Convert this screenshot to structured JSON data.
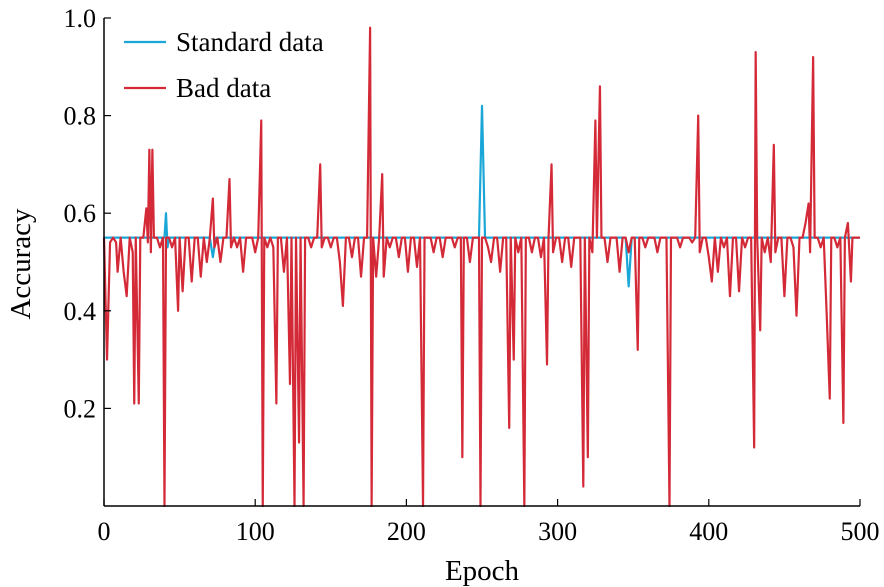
{
  "chart_data": {
    "type": "line",
    "title": "",
    "xlabel": "Epoch",
    "ylabel": "Accuracy",
    "xlim": [
      0,
      500
    ],
    "ylim": [
      0,
      1.0
    ],
    "xticks": [
      "0",
      "100",
      "200",
      "300",
      "400",
      "500"
    ],
    "yticks": [
      "0.2",
      "0.4",
      "0.6",
      "0.8",
      "1.0"
    ],
    "grid": false,
    "legend_position": "top-left",
    "series": [
      {
        "name": "Standard data",
        "color": "#1aa7d8",
        "points": [
          [
            0,
            0.55
          ],
          [
            4,
            0.55
          ],
          [
            40,
            0.55
          ],
          [
            41,
            0.6
          ],
          [
            42,
            0.53
          ],
          [
            43,
            0.55
          ],
          [
            70,
            0.55
          ],
          [
            72,
            0.51
          ],
          [
            74,
            0.55
          ],
          [
            248,
            0.55
          ],
          [
            250,
            0.82
          ],
          [
            252,
            0.55
          ],
          [
            345,
            0.55
          ],
          [
            347,
            0.45
          ],
          [
            349,
            0.55
          ],
          [
            500,
            0.55
          ]
        ]
      },
      {
        "name": "Bad data",
        "color": "#d42a38",
        "points": [
          [
            0,
            0.55
          ],
          [
            2,
            0.3
          ],
          [
            4,
            0.54
          ],
          [
            6,
            0.55
          ],
          [
            8,
            0.54
          ],
          [
            9,
            0.48
          ],
          [
            11,
            0.55
          ],
          [
            13,
            0.48
          ],
          [
            15,
            0.43
          ],
          [
            17,
            0.55
          ],
          [
            19,
            0.52
          ],
          [
            20,
            0.21
          ],
          [
            21,
            0.55
          ],
          [
            23,
            0.21
          ],
          [
            24,
            0.55
          ],
          [
            26,
            0.55
          ],
          [
            28,
            0.61
          ],
          [
            29,
            0.54
          ],
          [
            30,
            0.73
          ],
          [
            31,
            0.52
          ],
          [
            32,
            0.73
          ],
          [
            33,
            0.55
          ],
          [
            35,
            0.55
          ],
          [
            37,
            0.53
          ],
          [
            39,
            0.55
          ],
          [
            40,
            0.0
          ],
          [
            41,
            0.55
          ],
          [
            43,
            0.55
          ],
          [
            45,
            0.53
          ],
          [
            47,
            0.55
          ],
          [
            49,
            0.4
          ],
          [
            50,
            0.55
          ],
          [
            52,
            0.44
          ],
          [
            54,
            0.55
          ],
          [
            56,
            0.55
          ],
          [
            58,
            0.46
          ],
          [
            60,
            0.55
          ],
          [
            62,
            0.55
          ],
          [
            64,
            0.47
          ],
          [
            66,
            0.55
          ],
          [
            68,
            0.5
          ],
          [
            70,
            0.55
          ],
          [
            72,
            0.63
          ],
          [
            73,
            0.53
          ],
          [
            75,
            0.55
          ],
          [
            77,
            0.5
          ],
          [
            79,
            0.55
          ],
          [
            81,
            0.55
          ],
          [
            83,
            0.67
          ],
          [
            84,
            0.53
          ],
          [
            86,
            0.55
          ],
          [
            88,
            0.53
          ],
          [
            90,
            0.55
          ],
          [
            92,
            0.48
          ],
          [
            94,
            0.55
          ],
          [
            96,
            0.55
          ],
          [
            98,
            0.55
          ],
          [
            100,
            0.52
          ],
          [
            102,
            0.55
          ],
          [
            104,
            0.79
          ],
          [
            105,
            0.0
          ],
          [
            106,
            0.55
          ],
          [
            108,
            0.53
          ],
          [
            110,
            0.55
          ],
          [
            112,
            0.53
          ],
          [
            114,
            0.21
          ],
          [
            115,
            0.55
          ],
          [
            117,
            0.55
          ],
          [
            119,
            0.48
          ],
          [
            121,
            0.55
          ],
          [
            123,
            0.25
          ],
          [
            124,
            0.55
          ],
          [
            126,
            0.0
          ],
          [
            127,
            0.55
          ],
          [
            129,
            0.13
          ],
          [
            130,
            0.55
          ],
          [
            132,
            0.0
          ],
          [
            133,
            0.55
          ],
          [
            135,
            0.55
          ],
          [
            137,
            0.53
          ],
          [
            139,
            0.55
          ],
          [
            141,
            0.55
          ],
          [
            143,
            0.7
          ],
          [
            144,
            0.53
          ],
          [
            146,
            0.55
          ],
          [
            148,
            0.55
          ],
          [
            150,
            0.53
          ],
          [
            152,
            0.55
          ],
          [
            154,
            0.55
          ],
          [
            156,
            0.5
          ],
          [
            158,
            0.41
          ],
          [
            160,
            0.55
          ],
          [
            162,
            0.55
          ],
          [
            164,
            0.51
          ],
          [
            166,
            0.55
          ],
          [
            168,
            0.55
          ],
          [
            170,
            0.47
          ],
          [
            172,
            0.55
          ],
          [
            174,
            0.55
          ],
          [
            176,
            0.98
          ],
          [
            177,
            0.0
          ],
          [
            178,
            0.55
          ],
          [
            180,
            0.47
          ],
          [
            182,
            0.55
          ],
          [
            184,
            0.68
          ],
          [
            185,
            0.47
          ],
          [
            187,
            0.55
          ],
          [
            189,
            0.53
          ],
          [
            191,
            0.55
          ],
          [
            193,
            0.55
          ],
          [
            195,
            0.51
          ],
          [
            197,
            0.55
          ],
          [
            199,
            0.55
          ],
          [
            201,
            0.48
          ],
          [
            203,
            0.55
          ],
          [
            205,
            0.55
          ],
          [
            207,
            0.49
          ],
          [
            209,
            0.55
          ],
          [
            211,
            0.0
          ],
          [
            212,
            0.55
          ],
          [
            214,
            0.55
          ],
          [
            216,
            0.55
          ],
          [
            218,
            0.52
          ],
          [
            220,
            0.55
          ],
          [
            222,
            0.55
          ],
          [
            224,
            0.51
          ],
          [
            226,
            0.55
          ],
          [
            228,
            0.55
          ],
          [
            230,
            0.55
          ],
          [
            232,
            0.53
          ],
          [
            234,
            0.55
          ],
          [
            236,
            0.55
          ],
          [
            237,
            0.1
          ],
          [
            238,
            0.55
          ],
          [
            240,
            0.55
          ],
          [
            242,
            0.5
          ],
          [
            244,
            0.55
          ],
          [
            246,
            0.55
          ],
          [
            248,
            0.55
          ],
          [
            249,
            0.0
          ],
          [
            250,
            0.55
          ],
          [
            252,
            0.55
          ],
          [
            254,
            0.53
          ],
          [
            256,
            0.5
          ],
          [
            258,
            0.55
          ],
          [
            260,
            0.55
          ],
          [
            262,
            0.48
          ],
          [
            264,
            0.55
          ],
          [
            266,
            0.55
          ],
          [
            268,
            0.16
          ],
          [
            269,
            0.55
          ],
          [
            271,
            0.3
          ],
          [
            272,
            0.55
          ],
          [
            274,
            0.52
          ],
          [
            276,
            0.55
          ],
          [
            278,
            0.0
          ],
          [
            279,
            0.55
          ],
          [
            281,
            0.55
          ],
          [
            283,
            0.52
          ],
          [
            285,
            0.55
          ],
          [
            287,
            0.55
          ],
          [
            289,
            0.51
          ],
          [
            291,
            0.55
          ],
          [
            293,
            0.29
          ],
          [
            294,
            0.55
          ],
          [
            296,
            0.7
          ],
          [
            297,
            0.52
          ],
          [
            299,
            0.55
          ],
          [
            301,
            0.55
          ],
          [
            303,
            0.5
          ],
          [
            305,
            0.55
          ],
          [
            307,
            0.55
          ],
          [
            309,
            0.49
          ],
          [
            311,
            0.55
          ],
          [
            313,
            0.55
          ],
          [
            315,
            0.55
          ],
          [
            317,
            0.04
          ],
          [
            318,
            0.55
          ],
          [
            320,
            0.1
          ],
          [
            321,
            0.55
          ],
          [
            323,
            0.52
          ],
          [
            325,
            0.79
          ],
          [
            326,
            0.55
          ],
          [
            328,
            0.86
          ],
          [
            329,
            0.55
          ],
          [
            331,
            0.55
          ],
          [
            333,
            0.5
          ],
          [
            335,
            0.55
          ],
          [
            337,
            0.55
          ],
          [
            339,
            0.55
          ],
          [
            341,
            0.48
          ],
          [
            343,
            0.55
          ],
          [
            345,
            0.55
          ],
          [
            347,
            0.52
          ],
          [
            349,
            0.55
          ],
          [
            351,
            0.55
          ],
          [
            353,
            0.32
          ],
          [
            354,
            0.55
          ],
          [
            356,
            0.55
          ],
          [
            358,
            0.53
          ],
          [
            360,
            0.55
          ],
          [
            362,
            0.55
          ],
          [
            364,
            0.55
          ],
          [
            366,
            0.52
          ],
          [
            368,
            0.55
          ],
          [
            370,
            0.55
          ],
          [
            372,
            0.55
          ],
          [
            374,
            0.0
          ],
          [
            375,
            0.55
          ],
          [
            377,
            0.55
          ],
          [
            379,
            0.55
          ],
          [
            381,
            0.53
          ],
          [
            383,
            0.55
          ],
          [
            385,
            0.55
          ],
          [
            387,
            0.55
          ],
          [
            389,
            0.54
          ],
          [
            391,
            0.55
          ],
          [
            393,
            0.8
          ],
          [
            394,
            0.52
          ],
          [
            396,
            0.55
          ],
          [
            398,
            0.55
          ],
          [
            400,
            0.51
          ],
          [
            402,
            0.46
          ],
          [
            404,
            0.55
          ],
          [
            406,
            0.48
          ],
          [
            408,
            0.55
          ],
          [
            410,
            0.53
          ],
          [
            412,
            0.55
          ],
          [
            414,
            0.43
          ],
          [
            416,
            0.55
          ],
          [
            418,
            0.55
          ],
          [
            420,
            0.44
          ],
          [
            422,
            0.55
          ],
          [
            424,
            0.53
          ],
          [
            426,
            0.55
          ],
          [
            428,
            0.55
          ],
          [
            430,
            0.12
          ],
          [
            431,
            0.93
          ],
          [
            432,
            0.55
          ],
          [
            434,
            0.36
          ],
          [
            435,
            0.55
          ],
          [
            437,
            0.52
          ],
          [
            439,
            0.55
          ],
          [
            441,
            0.5
          ],
          [
            443,
            0.74
          ],
          [
            444,
            0.52
          ],
          [
            446,
            0.55
          ],
          [
            448,
            0.55
          ],
          [
            450,
            0.43
          ],
          [
            452,
            0.55
          ],
          [
            454,
            0.55
          ],
          [
            456,
            0.53
          ],
          [
            458,
            0.39
          ],
          [
            460,
            0.55
          ],
          [
            462,
            0.55
          ],
          [
            464,
            0.58
          ],
          [
            466,
            0.62
          ],
          [
            467,
            0.52
          ],
          [
            469,
            0.92
          ],
          [
            470,
            0.55
          ],
          [
            472,
            0.55
          ],
          [
            474,
            0.53
          ],
          [
            476,
            0.55
          ],
          [
            478,
            0.39
          ],
          [
            480,
            0.22
          ],
          [
            481,
            0.55
          ],
          [
            483,
            0.55
          ],
          [
            485,
            0.53
          ],
          [
            487,
            0.55
          ],
          [
            489,
            0.17
          ],
          [
            490,
            0.55
          ],
          [
            492,
            0.58
          ],
          [
            494,
            0.46
          ],
          [
            495,
            0.55
          ],
          [
            497,
            0.55
          ],
          [
            500,
            0.55
          ]
        ]
      }
    ]
  }
}
